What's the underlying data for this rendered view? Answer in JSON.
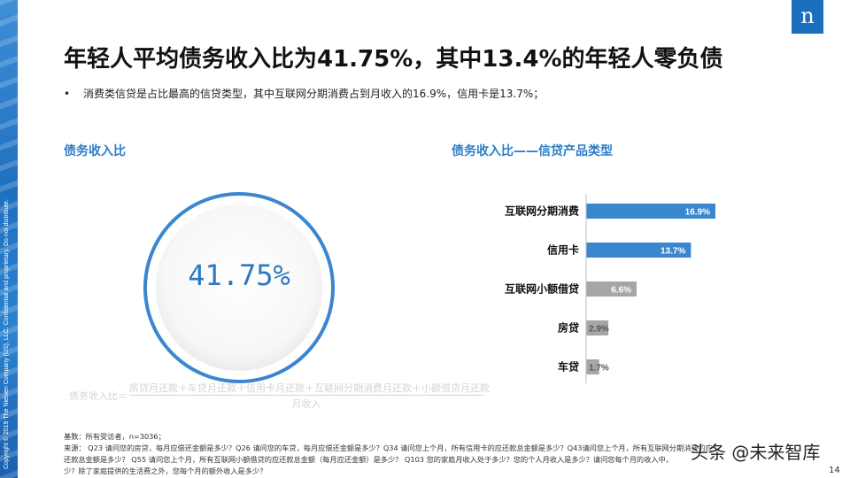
{
  "sidebar": {
    "copyright": "Copyright © 2019 The Nielsen Company (US), LLC. Confidential and proprietary. Do not distribute."
  },
  "logo": {
    "letter": "n",
    "color": "#1b6fbf"
  },
  "title": "年轻人平均债务收入比为41.75%，其中13.4%的年轻人零负债",
  "bullet": "消费类信贷是占比最高的信贷类型，其中互联网分期消费占到月收入的16.9%，信用卡是13.7%；",
  "left_panel": {
    "title": "债务收入比",
    "value": "41.75%",
    "ring_color": "#3a86cf",
    "formula": {
      "label": "债务收入比＝",
      "numerator": "房贷月还款＋车贷月还款＋信用卡月还款＋互联网分期消费月还款＋小额借贷月还款",
      "denominator": "月收入"
    }
  },
  "right_panel": {
    "title": "债务收入比——信贷产品类型"
  },
  "chart_data": {
    "type": "bar",
    "orientation": "horizontal",
    "categories": [
      "互联网分期消费",
      "信用卡",
      "互联网小额借贷",
      "房贷",
      "车贷"
    ],
    "values": [
      16.9,
      13.7,
      6.6,
      2.9,
      1.7
    ],
    "labels": [
      "16.9%",
      "13.7%",
      "6.6%",
      "2.9%",
      "1.7%"
    ],
    "colors": [
      "#3a86cf",
      "#3a86cf",
      "#a6a6a6",
      "#a6a6a6",
      "#a6a6a6"
    ],
    "xlim": [
      0,
      16.9
    ],
    "grid": false,
    "title": "债务收入比——信贷产品类型"
  },
  "footnote": {
    "lines": [
      "基数：所有受访者，n=3036；",
      "来源：  Q23 请问您的房贷，每月应偿还金额是多少？Q26 请问您的车贷，每月应偿还金额是多少？Q34 请问您上个月，所有信用卡的应还款总金额是多少？Q43请问您上个月，所有互联网分期消费的应",
      "还款总金额是多少？  Q55 请问您上个月，所有互联网小额借贷的应还款总金额（每月应还金额）是多少？  Q103 您的家庭月收入处于多少？您的个人月收入是多少？请问您每个月的收入中，",
      "少？除了家庭提供的生活费之外，您每个月的额外收入是多少？"
    ]
  },
  "watermark": "头条 @未来智库",
  "page_number": "14"
}
